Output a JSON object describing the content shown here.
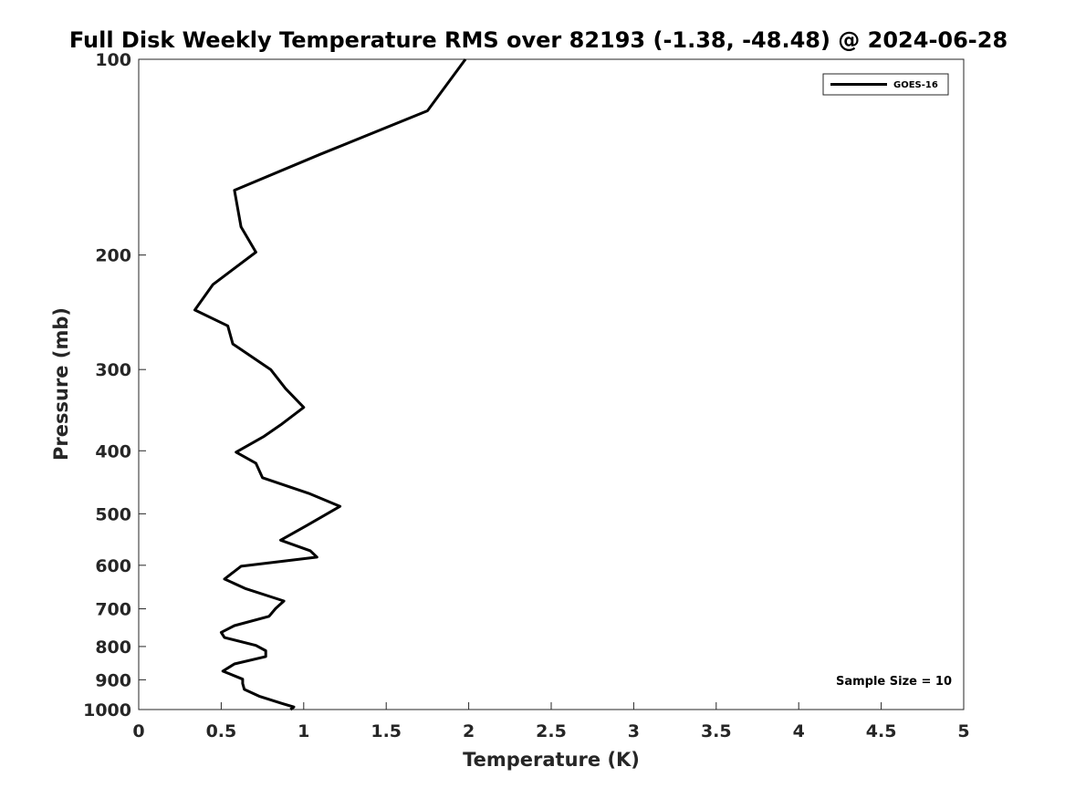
{
  "chart_data": {
    "type": "line",
    "title": "Full Disk Weekly Temperature RMS over 82193 (-1.38, -48.48) @ 2024-06-28",
    "xlabel": "Temperature (K)",
    "ylabel": "Pressure (mb)",
    "xlim": [
      0,
      5
    ],
    "ylim": [
      100,
      1000
    ],
    "y_scale": "log",
    "y_reversed": true,
    "x_ticks": [
      "0",
      "0.5",
      "1",
      "1.5",
      "2",
      "2.5",
      "3",
      "3.5",
      "4",
      "4.5",
      "5"
    ],
    "x_tick_values": [
      0,
      0.5,
      1,
      1.5,
      2,
      2.5,
      3,
      3.5,
      4,
      4.5,
      5
    ],
    "y_ticks": [
      "100",
      "200",
      "300",
      "400",
      "500",
      "600",
      "700",
      "800",
      "900",
      "1000"
    ],
    "y_tick_values": [
      100,
      200,
      300,
      400,
      500,
      600,
      700,
      800,
      900,
      1000
    ],
    "grid": false,
    "legend_position": "top-right",
    "annotation": "Sample Size = 10",
    "line_color": "#000000",
    "series": [
      {
        "name": "GOES-16",
        "points": [
          {
            "x": 1.98,
            "y": 100
          },
          {
            "x": 1.75,
            "y": 120
          },
          {
            "x": 1.1,
            "y": 140
          },
          {
            "x": 0.58,
            "y": 159
          },
          {
            "x": 0.62,
            "y": 181
          },
          {
            "x": 0.71,
            "y": 198
          },
          {
            "x": 0.45,
            "y": 222
          },
          {
            "x": 0.34,
            "y": 243
          },
          {
            "x": 0.54,
            "y": 257
          },
          {
            "x": 0.57,
            "y": 274
          },
          {
            "x": 0.8,
            "y": 300
          },
          {
            "x": 0.89,
            "y": 321
          },
          {
            "x": 1.0,
            "y": 343
          },
          {
            "x": 0.86,
            "y": 365
          },
          {
            "x": 0.76,
            "y": 380
          },
          {
            "x": 0.59,
            "y": 402
          },
          {
            "x": 0.71,
            "y": 418
          },
          {
            "x": 0.75,
            "y": 440
          },
          {
            "x": 1.03,
            "y": 465
          },
          {
            "x": 1.22,
            "y": 487
          },
          {
            "x": 1.02,
            "y": 521
          },
          {
            "x": 0.86,
            "y": 549
          },
          {
            "x": 1.04,
            "y": 570
          },
          {
            "x": 1.08,
            "y": 583
          },
          {
            "x": 0.62,
            "y": 602
          },
          {
            "x": 0.52,
            "y": 630
          },
          {
            "x": 0.65,
            "y": 652
          },
          {
            "x": 0.88,
            "y": 681
          },
          {
            "x": 0.83,
            "y": 699
          },
          {
            "x": 0.79,
            "y": 719
          },
          {
            "x": 0.58,
            "y": 743
          },
          {
            "x": 0.5,
            "y": 761
          },
          {
            "x": 0.52,
            "y": 775
          },
          {
            "x": 0.71,
            "y": 797
          },
          {
            "x": 0.77,
            "y": 812
          },
          {
            "x": 0.77,
            "y": 829
          },
          {
            "x": 0.58,
            "y": 851
          },
          {
            "x": 0.51,
            "y": 873
          },
          {
            "x": 0.63,
            "y": 898
          },
          {
            "x": 0.63,
            "y": 912
          },
          {
            "x": 0.64,
            "y": 931
          },
          {
            "x": 0.73,
            "y": 954
          },
          {
            "x": 0.87,
            "y": 979
          },
          {
            "x": 0.94,
            "y": 991
          },
          {
            "x": 0.92,
            "y": 1000
          }
        ]
      }
    ]
  }
}
